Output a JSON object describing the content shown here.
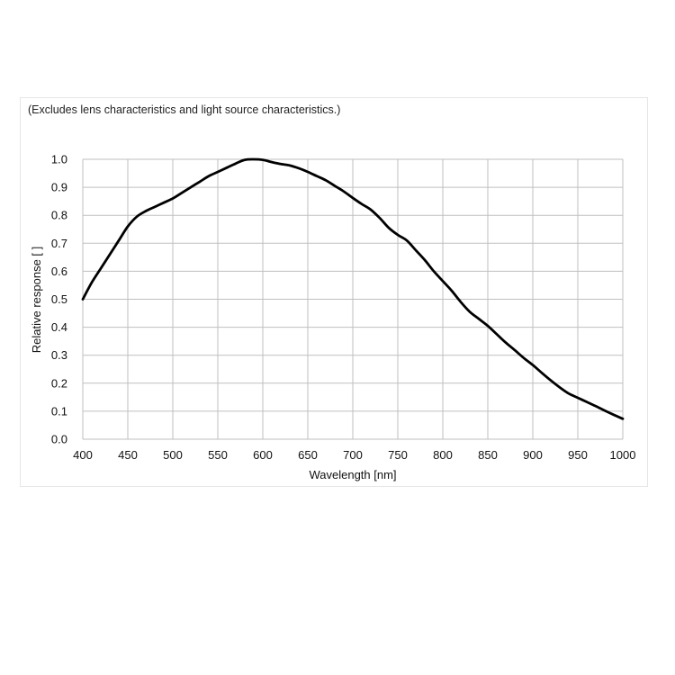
{
  "note": "(Excludes lens characteristics and light source characteristics.)",
  "chart_data": {
    "type": "line",
    "title": "",
    "xlabel": "Wavelength [nm]",
    "ylabel": "Relative response [ ]",
    "xlim": [
      400,
      1000
    ],
    "ylim": [
      0.0,
      1.0
    ],
    "xticks": [
      400,
      450,
      500,
      550,
      600,
      650,
      700,
      750,
      800,
      850,
      900,
      950,
      1000
    ],
    "xtick_labels": [
      "400",
      "450",
      "500",
      "550",
      "600",
      "650",
      "700",
      "750",
      "800",
      "850",
      "900",
      "950",
      "1000"
    ],
    "yticks": [
      0.0,
      0.1,
      0.2,
      0.3,
      0.4,
      0.5,
      0.6,
      0.7,
      0.8,
      0.9,
      1.0
    ],
    "ytick_labels": [
      "0.0",
      "0.1",
      "0.2",
      "0.3",
      "0.4",
      "0.5",
      "0.6",
      "0.7",
      "0.8",
      "0.9",
      "1.0"
    ],
    "grid": true,
    "legend": "none",
    "line_color": "#000000",
    "grid_color": "#bfbfbf",
    "series": [
      {
        "x": [
          400,
          410,
          420,
          430,
          440,
          450,
          460,
          470,
          480,
          490,
          500,
          510,
          520,
          530,
          540,
          550,
          560,
          570,
          580,
          590,
          600,
          610,
          620,
          630,
          640,
          650,
          660,
          670,
          680,
          690,
          700,
          710,
          720,
          730,
          740,
          750,
          760,
          770,
          780,
          790,
          800,
          810,
          820,
          830,
          840,
          850,
          860,
          870,
          880,
          890,
          900,
          910,
          920,
          930,
          940,
          950,
          960,
          970,
          980,
          990,
          1000
        ],
        "values": [
          0.5,
          0.56,
          0.61,
          0.66,
          0.71,
          0.76,
          0.795,
          0.815,
          0.83,
          0.845,
          0.86,
          0.88,
          0.9,
          0.92,
          0.94,
          0.955,
          0.97,
          0.985,
          0.998,
          1.0,
          0.998,
          0.99,
          0.983,
          0.978,
          0.968,
          0.955,
          0.94,
          0.925,
          0.905,
          0.885,
          0.862,
          0.84,
          0.82,
          0.79,
          0.755,
          0.73,
          0.71,
          0.675,
          0.64,
          0.6,
          0.565,
          0.53,
          0.49,
          0.455,
          0.43,
          0.405,
          0.375,
          0.345,
          0.318,
          0.29,
          0.265,
          0.237,
          0.21,
          0.185,
          0.163,
          0.148,
          0.133,
          0.118,
          0.102,
          0.087,
          0.073
        ]
      }
    ]
  }
}
